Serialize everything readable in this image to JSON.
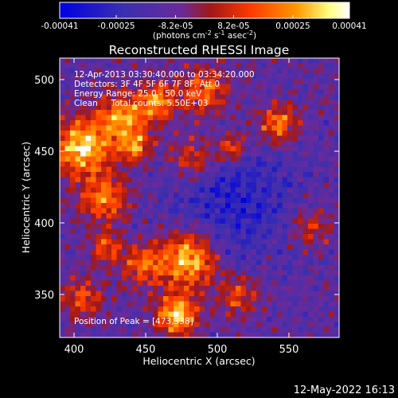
{
  "chart_data": {
    "type": "heatmap",
    "title": "Reconstructed RHESSI Image",
    "xlabel": "Heliocentric X (arcsec)",
    "ylabel": "Heliocentric Y (arcsec)",
    "xlim": [
      390,
      585
    ],
    "ylim": [
      320,
      515
    ],
    "x_ticks": [
      400,
      450,
      500,
      550
    ],
    "y_ticks": [
      350,
      400,
      450,
      500
    ],
    "colorbar": {
      "range": [
        -0.00041,
        0.00041
      ],
      "tick_values": [
        -0.00041,
        -0.00025,
        -8.2e-05,
        8.2e-05,
        0.00025,
        0.00041
      ],
      "tick_labels": [
        "-0.00041",
        "-0.00025",
        "-8.2e-05",
        "8.2e-05",
        "0.00025",
        "0.00041"
      ],
      "label": "(photons cm^-2 s^-1 asec^-2)",
      "colors": [
        "#0000e0",
        "#3b2fb0",
        "#6a2a9a",
        "#a01818",
        "#ff3a00",
        "#ff9a00",
        "#ffff80",
        "#ffffff"
      ]
    },
    "annotations": [
      "12-Apr-2013 03:30:40.000 to 03:34:20.000",
      "Detectors: 3F 4F 5F 6F 7F 8F, Att 0",
      "Energy Range: 25.0 - 50.0 keV",
      "Clean     Total counts: 5.50E+03"
    ],
    "peak_label": "Position of Peak = [473,338]",
    "peak": [
      473,
      338
    ],
    "grid": false
  },
  "footer_timestamp": "12-May-2022 16:13"
}
